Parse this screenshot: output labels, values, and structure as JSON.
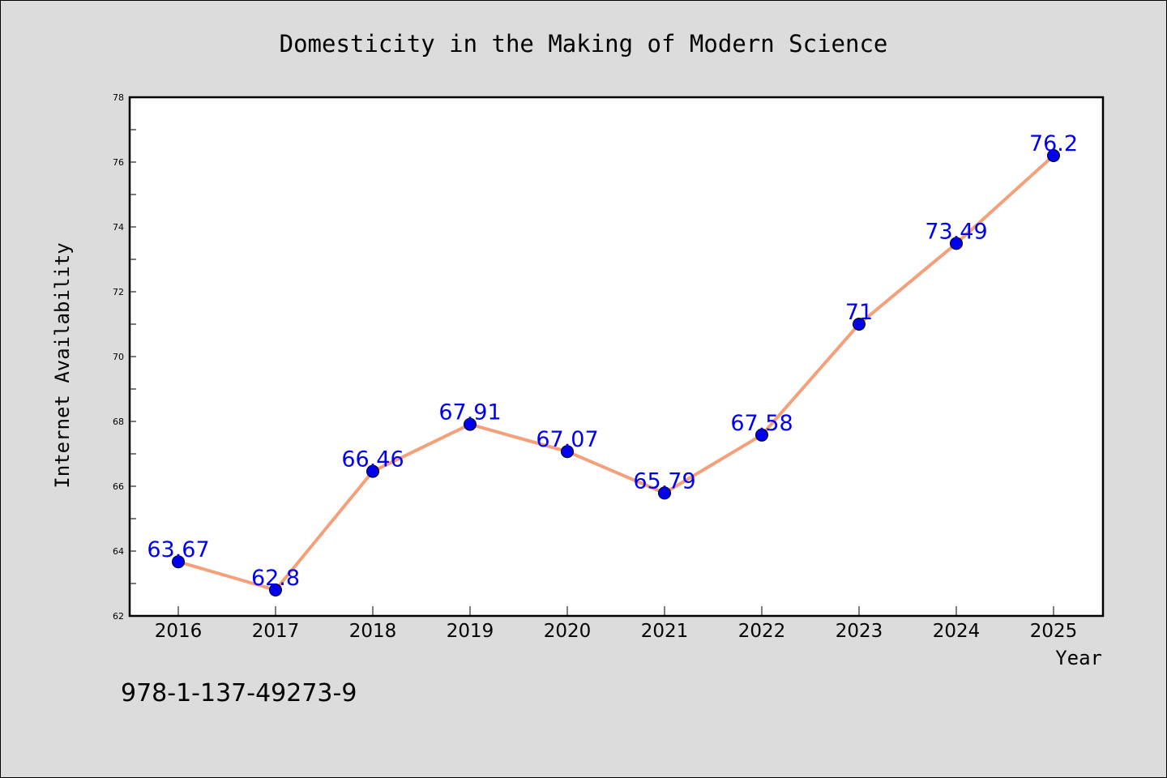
{
  "chart_data": {
    "type": "line",
    "title": "Domesticity in the Making of Modern Science",
    "xlabel": "Year",
    "ylabel": "Internet Availability",
    "x": [
      "2016",
      "2017",
      "2018",
      "2019",
      "2020",
      "2021",
      "2022",
      "2023",
      "2024",
      "2025"
    ],
    "series": [
      {
        "values": [
          63.67,
          62.8,
          66.46,
          67.91,
          67.07,
          65.79,
          67.58,
          71,
          73.49,
          76.2
        ],
        "labels": [
          "63.67",
          "62.8",
          "66.46",
          "67.91",
          "67.07",
          "65.79",
          "67.58",
          "71",
          "73.49",
          "76.2"
        ]
      }
    ],
    "ylim": [
      62,
      78
    ],
    "yticks": [
      "62",
      "64",
      "66",
      "68",
      "70",
      "72",
      "74",
      "76",
      "78"
    ],
    "grid": false,
    "line_color": "#f4a07a",
    "marker_color": "#0000ee",
    "label_color": "#0000ee"
  },
  "footnote": "978-1-137-49273-9"
}
